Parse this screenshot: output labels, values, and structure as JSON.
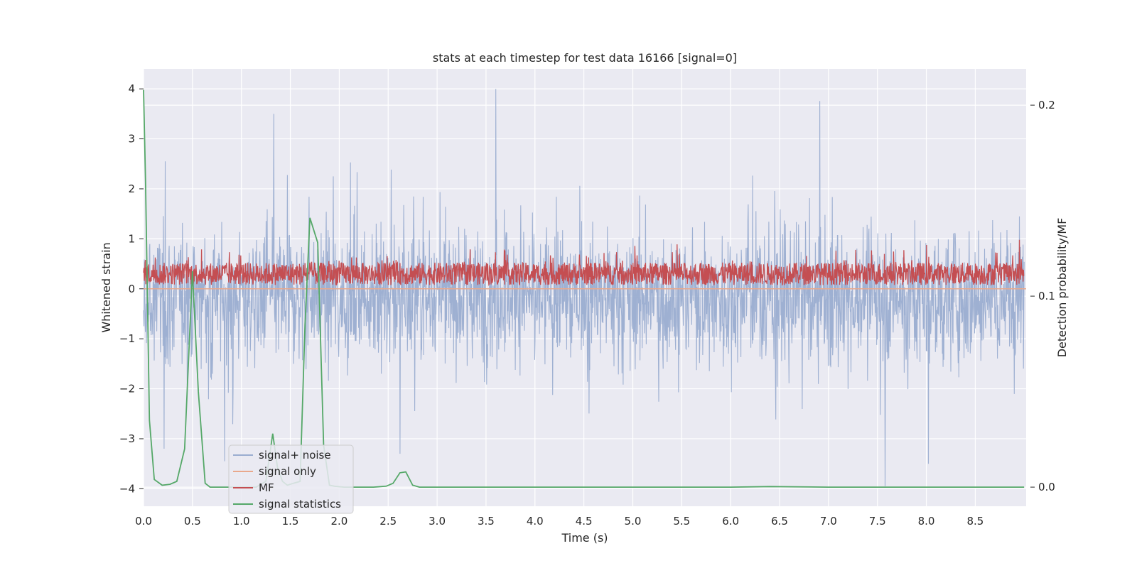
{
  "chart_data": {
    "type": "line",
    "title": "stats at each timestep for test data 16166 [signal=0]",
    "xlabel": "Time (s)",
    "ylabel": "Whitened strain",
    "y2label": "Detection probability/MF",
    "xlim": [
      0.0,
      9.02
    ],
    "ylim": [
      -4.35,
      4.4
    ],
    "y2lim": [
      -0.01,
      0.219
    ],
    "x_ticks": [
      "0.0",
      "0.5",
      "1.0",
      "1.5",
      "2.0",
      "2.5",
      "3.0",
      "3.5",
      "4.0",
      "4.5",
      "5.0",
      "5.5",
      "6.0",
      "6.5",
      "7.0",
      "7.5",
      "8.0",
      "8.5"
    ],
    "y_ticks": [
      "4",
      "3",
      "2",
      "1",
      "0",
      "−1",
      "−2",
      "−3",
      "−4"
    ],
    "y2_ticks": [
      "0.2",
      "0.1",
      "0.0"
    ],
    "grid": true,
    "legend_position": "lower-left",
    "series": [
      {
        "name": "signal+ noise",
        "axis": "left",
        "color": "#9aadd0",
        "description_values": {
          "typical_range": [
            -2.5,
            2.5
          ],
          "extremes": {
            "max": 4.0,
            "max_at": 3.6,
            "min": -3.95,
            "min_at": 7.58
          },
          "notable_peaks": [
            [
              1.33,
              3.5
            ],
            [
              3.6,
              4.0
            ],
            [
              0.22,
              2.55
            ],
            [
              1.94,
              2.25
            ]
          ],
          "notable_troughs": [
            [
              0.21,
              -3.2
            ],
            [
              0.83,
              -3.45
            ],
            [
              2.62,
              -3.3
            ],
            [
              7.58,
              -3.95
            ],
            [
              8.02,
              -3.5
            ]
          ]
        }
      },
      {
        "name": "signal only",
        "axis": "left",
        "color": "#e9a88c",
        "values_note": "zero everywhere",
        "x": [
          0.0,
          9.02
        ],
        "y": [
          0.0,
          0.0
        ]
      },
      {
        "name": "MF",
        "axis": "left",
        "color": "#c44e52",
        "description_values": {
          "typical_range": [
            0.0,
            0.6
          ],
          "extremes": {
            "max": 0.98,
            "max_at": 8.95
          }
        }
      },
      {
        "name": "signal statistics",
        "axis": "right",
        "color": "#55a868",
        "x": [
          0.0,
          0.02,
          0.06,
          0.11,
          0.19,
          0.27,
          0.34,
          0.42,
          0.5,
          0.56,
          0.63,
          0.68,
          0.75,
          0.85,
          0.95,
          1.05,
          1.15,
          1.25,
          1.32,
          1.37,
          1.42,
          1.47,
          1.53,
          1.6,
          1.65,
          1.7,
          1.78,
          1.84,
          1.9,
          1.95,
          2.05,
          2.2,
          2.35,
          2.48,
          2.55,
          2.62,
          2.68,
          2.75,
          2.82,
          3.0,
          4.0,
          5.0,
          6.0,
          6.4,
          7.0,
          8.0,
          9.0
        ],
        "y": [
          0.208,
          0.16,
          0.035,
          0.004,
          0.001,
          0.0015,
          0.003,
          0.02,
          0.113,
          0.05,
          0.002,
          0.0,
          0.0,
          0.0,
          0.0,
          0.0,
          0.0,
          0.003,
          0.028,
          0.01,
          0.003,
          0.001,
          0.002,
          0.003,
          0.085,
          0.141,
          0.128,
          0.022,
          0.001,
          0.0005,
          0.0,
          0.0,
          0.0,
          0.0005,
          0.002,
          0.0075,
          0.008,
          0.001,
          0.0,
          0.0,
          0.0,
          0.0,
          0.0,
          0.0003,
          0.0,
          0.0,
          0.0
        ]
      }
    ]
  }
}
